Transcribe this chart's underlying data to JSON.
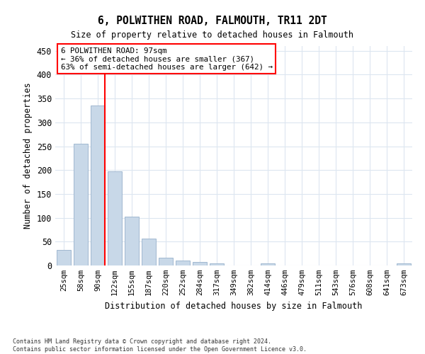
{
  "title_line1": "6, POLWITHEN ROAD, FALMOUTH, TR11 2DT",
  "title_line2": "Size of property relative to detached houses in Falmouth",
  "xlabel": "Distribution of detached houses by size in Falmouth",
  "ylabel": "Number of detached properties",
  "categories": [
    "25sqm",
    "58sqm",
    "90sqm",
    "122sqm",
    "155sqm",
    "187sqm",
    "220sqm",
    "252sqm",
    "284sqm",
    "317sqm",
    "349sqm",
    "382sqm",
    "414sqm",
    "446sqm",
    "479sqm",
    "511sqm",
    "543sqm",
    "576sqm",
    "608sqm",
    "641sqm",
    "673sqm"
  ],
  "values": [
    33,
    255,
    335,
    197,
    103,
    57,
    17,
    10,
    7,
    5,
    0,
    0,
    4,
    0,
    0,
    0,
    0,
    0,
    0,
    0,
    4
  ],
  "bar_color": "#c8d8e8",
  "bar_edgecolor": "#a0b8d0",
  "annotation_line1": "6 POLWITHEN ROAD: 97sqm",
  "annotation_line2": "← 36% of detached houses are smaller (367)",
  "annotation_line3": "63% of semi-detached houses are larger (642) →",
  "ylim": [
    0,
    460
  ],
  "yticks": [
    0,
    50,
    100,
    150,
    200,
    250,
    300,
    350,
    400,
    450
  ],
  "footnote": "Contains HM Land Registry data © Crown copyright and database right 2024.\nContains public sector information licensed under the Open Government Licence v3.0.",
  "background_color": "#ffffff",
  "grid_color": "#dce6f0"
}
